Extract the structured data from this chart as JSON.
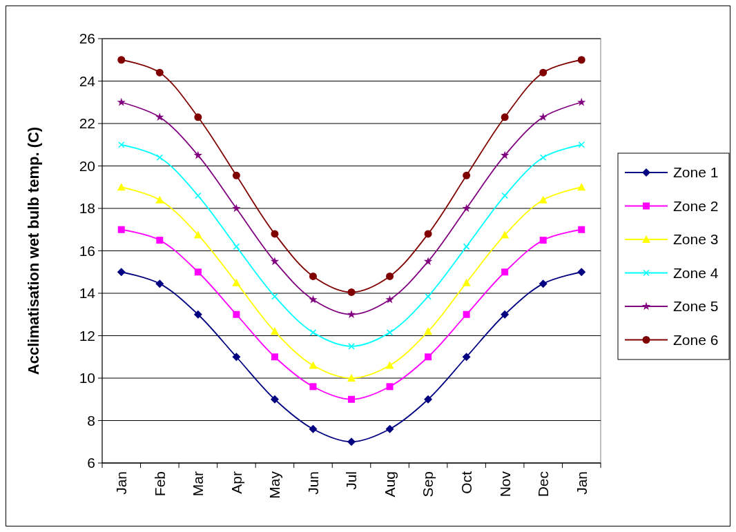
{
  "chart_data": {
    "type": "line",
    "ylabel": "Acclimatisation wet bulb temp. (C)",
    "categories": [
      "Jan",
      "Feb",
      "Mar",
      "Apr",
      "May",
      "Jun",
      "Jul",
      "Aug",
      "Sep",
      "Oct",
      "Nov",
      "Dec",
      "Jan"
    ],
    "ylim": [
      6,
      26
    ],
    "yticks": [
      6,
      8,
      10,
      12,
      14,
      16,
      18,
      20,
      22,
      24,
      26
    ],
    "grid": "y",
    "legend": "right",
    "series": [
      {
        "name": "Zone 1",
        "color": "#000080",
        "marker": "diamond",
        "values": [
          15,
          14.45,
          13,
          11,
          9,
          7.6,
          7,
          7.6,
          9,
          11,
          13,
          14.45,
          15
        ]
      },
      {
        "name": "Zone 2",
        "color": "#ff00ff",
        "marker": "square",
        "values": [
          17,
          16.5,
          15,
          13,
          11,
          9.6,
          9,
          9.6,
          11,
          13,
          15,
          16.5,
          17
        ]
      },
      {
        "name": "Zone 3",
        "color": "#ffff00",
        "marker": "triangle",
        "values": [
          19,
          18.4,
          16.75,
          14.5,
          12.2,
          10.6,
          10,
          10.6,
          12.2,
          14.5,
          16.75,
          18.4,
          19
        ]
      },
      {
        "name": "Zone 4",
        "color": "#00ffff",
        "marker": "cross",
        "values": [
          21,
          20.4,
          18.6,
          16.2,
          13.85,
          12.15,
          11.5,
          12.15,
          13.85,
          16.2,
          18.6,
          20.4,
          21
        ]
      },
      {
        "name": "Zone 5",
        "color": "#800080",
        "marker": "star",
        "values": [
          23,
          22.3,
          20.5,
          18,
          15.5,
          13.7,
          13,
          13.7,
          15.5,
          18,
          20.5,
          22.3,
          23
        ]
      },
      {
        "name": "Zone 6",
        "color": "#800000",
        "marker": "circle",
        "values": [
          25,
          24.4,
          22.3,
          19.55,
          16.8,
          14.8,
          14.05,
          14.8,
          16.8,
          19.55,
          22.3,
          24.4,
          25
        ]
      }
    ]
  }
}
